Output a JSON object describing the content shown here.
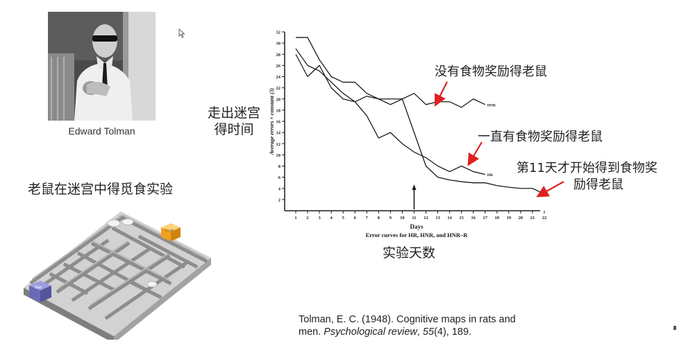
{
  "portrait": {
    "caption": "Edward Tolman"
  },
  "maze": {
    "title": "老鼠在迷宫中得觅食实验",
    "food_label": "Food",
    "start_label": "Start"
  },
  "chart_labels": {
    "y_cn": "走出迷宫得时间",
    "x_cn": "实验天数"
  },
  "annotations": {
    "no_reward": "没有食物奖励得老鼠",
    "always_reward": "一直有食物奖励得老鼠",
    "late_reward_line1": "第11天才开始得到食物奖",
    "late_reward_line2": "励得老鼠"
  },
  "citation": {
    "line1": "Tolman, E. C. (1948). Cognitive maps in rats and",
    "line2_pre": "men. ",
    "journal": "Psychological review",
    "sep": ", ",
    "volume": "55",
    "issue_pages": "(4), 189."
  },
  "colors": {
    "annotation_arrow": "#e02020",
    "chart_ink": "#1a1a1a",
    "maze_wall": "#8f8f8f",
    "food_box": "#f0a020",
    "start_box": "#6a6ab8"
  },
  "chart_data": {
    "type": "line",
    "xlabel": "Days",
    "ylabel": "Average errors × constant (3)",
    "caption": "Error curves for HR, HNR, and HNR–R",
    "x": [
      1,
      2,
      3,
      4,
      5,
      6,
      7,
      8,
      9,
      10,
      11,
      12,
      13,
      14,
      15,
      16,
      17,
      18,
      19,
      20,
      21,
      22
    ],
    "xlim": [
      1,
      22
    ],
    "ylim": [
      0,
      32
    ],
    "yticks": [
      2,
      4,
      6,
      8,
      10,
      12,
      14,
      16,
      18,
      20,
      22,
      24,
      26,
      28,
      30,
      32
    ],
    "marker_day": 11,
    "grid": false,
    "legend": "none",
    "series": [
      {
        "name": "HNR",
        "x": [
          1,
          2,
          3,
          4,
          5,
          6,
          7,
          8,
          9,
          10,
          11,
          12,
          13,
          14,
          15,
          16,
          17
        ],
        "values": [
          31,
          31,
          27,
          24,
          23,
          23,
          21,
          20,
          20,
          20,
          21,
          19,
          19.5,
          19.5,
          18.5,
          20,
          19
        ]
      },
      {
        "name": "HR",
        "x": [
          1,
          2,
          3,
          4,
          5,
          6,
          7,
          8,
          9,
          10,
          11,
          12,
          13,
          14,
          15,
          16,
          17
        ],
        "values": [
          29,
          26,
          25,
          23,
          21,
          19.5,
          17,
          13,
          14,
          12,
          10.5,
          9.5,
          8,
          7,
          8,
          7,
          6.5
        ]
      },
      {
        "name": "HNR-R",
        "x": [
          1,
          2,
          3,
          4,
          5,
          6,
          7,
          8,
          9,
          10,
          11,
          12,
          13,
          14,
          15,
          16,
          17,
          18,
          19,
          20,
          21,
          22
        ],
        "values": [
          28,
          24,
          26,
          22,
          20,
          19.5,
          20.5,
          20,
          19,
          20,
          14,
          8,
          6,
          5.5,
          5.2,
          5,
          5,
          4.5,
          4.2,
          4,
          4,
          3
        ]
      }
    ],
    "series_labels": [
      "HNR",
      "HR",
      "HNR-R"
    ]
  }
}
